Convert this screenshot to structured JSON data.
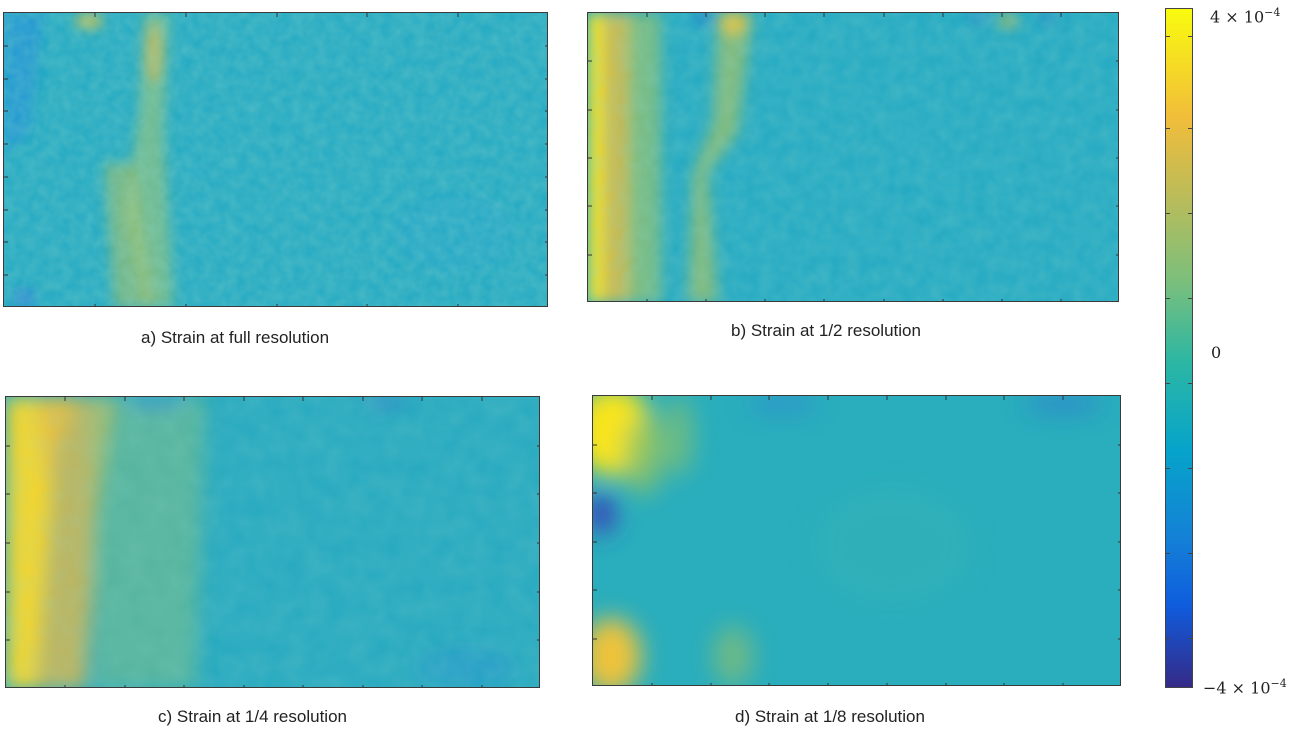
{
  "figure": {
    "panels": [
      {
        "id": "a",
        "caption": "a) Strain at full resolution"
      },
      {
        "id": "b",
        "caption": "b) Strain at 1/2 resolution"
      },
      {
        "id": "c",
        "caption": "c) Strain at 1/4 resolution"
      },
      {
        "id": "d",
        "caption": "d) Strain at 1/8 resolution"
      }
    ],
    "colorbar": {
      "max_label": "4 × 10",
      "max_exp": "−4",
      "zero_label": "0",
      "min_label": "−4 × 10",
      "min_exp": "−4"
    }
  },
  "chart_data": {
    "type": "heatmap",
    "colormap": "parula",
    "colors": {
      "low": "#352a87",
      "mid": "#1fb0c5",
      "high": "#f9fb0e",
      "background": "#22a9c3"
    },
    "value_range": [
      -0.0004,
      0.0004
    ],
    "colorbar_ticks": [
      -0.0004,
      0,
      0.0004
    ],
    "panels": [
      {
        "id": "a",
        "resolution": "full",
        "features": [
          "near-zero strain field with fine noise",
          "two weak vertical bands of positive strain near left third"
        ]
      },
      {
        "id": "b",
        "resolution": "1/2",
        "features": [
          "strong positive strain (~4e-4) along left edge",
          "vertical positive band near left third"
        ]
      },
      {
        "id": "c",
        "resolution": "1/4",
        "features": [
          "strong positive strain along left edge",
          "smoother field elsewhere"
        ]
      },
      {
        "id": "d",
        "resolution": "1/8",
        "features": [
          "positive strain blobs at left corners",
          "negative spot at mid left edge",
          "smooth near-zero field"
        ]
      }
    ]
  }
}
